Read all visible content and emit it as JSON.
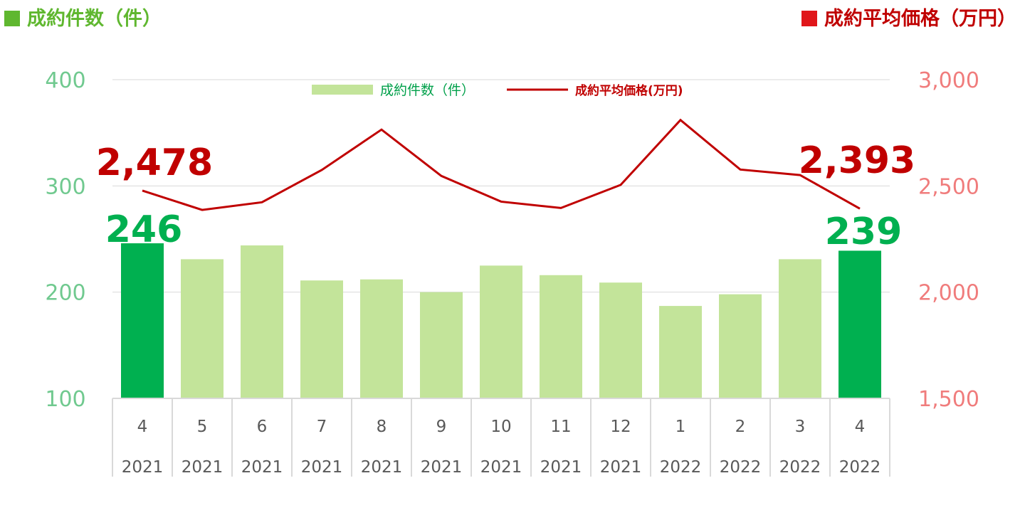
{
  "left_title": "成約件数（件）",
  "right_title": "成約平均価格（万円）",
  "colors": {
    "bar": "#c3e49a",
    "bar_highlight": "#00b050",
    "line": "#c00000",
    "left_axis_text": "#70c98f",
    "right_axis_text": "#f07c7c",
    "left_title": "#5fb72f",
    "right_title_square": "#e0161a",
    "highlight_count_label": "#00b050",
    "highlight_price_label": "#c00000"
  },
  "chart_data": {
    "type": "bar",
    "categories": [
      {
        "month": "4",
        "year": "2021"
      },
      {
        "month": "5",
        "year": "2021"
      },
      {
        "month": "6",
        "year": "2021"
      },
      {
        "month": "7",
        "year": "2021"
      },
      {
        "month": "8",
        "year": "2021"
      },
      {
        "month": "9",
        "year": "2021"
      },
      {
        "month": "10",
        "year": "2021"
      },
      {
        "month": "11",
        "year": "2021"
      },
      {
        "month": "12",
        "year": "2021"
      },
      {
        "month": "1",
        "year": "2022"
      },
      {
        "month": "2",
        "year": "2022"
      },
      {
        "month": "3",
        "year": "2022"
      },
      {
        "month": "4",
        "year": "2022"
      }
    ],
    "series": [
      {
        "name": "成約件数（件）",
        "type": "bar",
        "axis": "left",
        "values": [
          246,
          231,
          244,
          211,
          212,
          200,
          225,
          216,
          209,
          187,
          198,
          231,
          239
        ],
        "highlight_indices": [
          0,
          12
        ]
      },
      {
        "name": "成約平均価格(万円)",
        "type": "line",
        "axis": "right",
        "values": [
          2478,
          2387,
          2423,
          2575,
          2765,
          2547,
          2426,
          2396,
          2505,
          2810,
          2577,
          2551,
          2393
        ]
      }
    ],
    "left_axis": {
      "ylim": [
        100,
        400
      ],
      "ticks": [
        "100",
        "200",
        "300",
        "400"
      ]
    },
    "right_axis": {
      "ylim": [
        1500,
        3000
      ],
      "ticks": [
        "1,500",
        "2,000",
        "2,500",
        "3,000"
      ]
    },
    "grid": true,
    "legend": "top-center",
    "annotations": {
      "first_count": "246",
      "last_count": "239",
      "first_price": "2,478",
      "last_price": "2,393"
    }
  }
}
